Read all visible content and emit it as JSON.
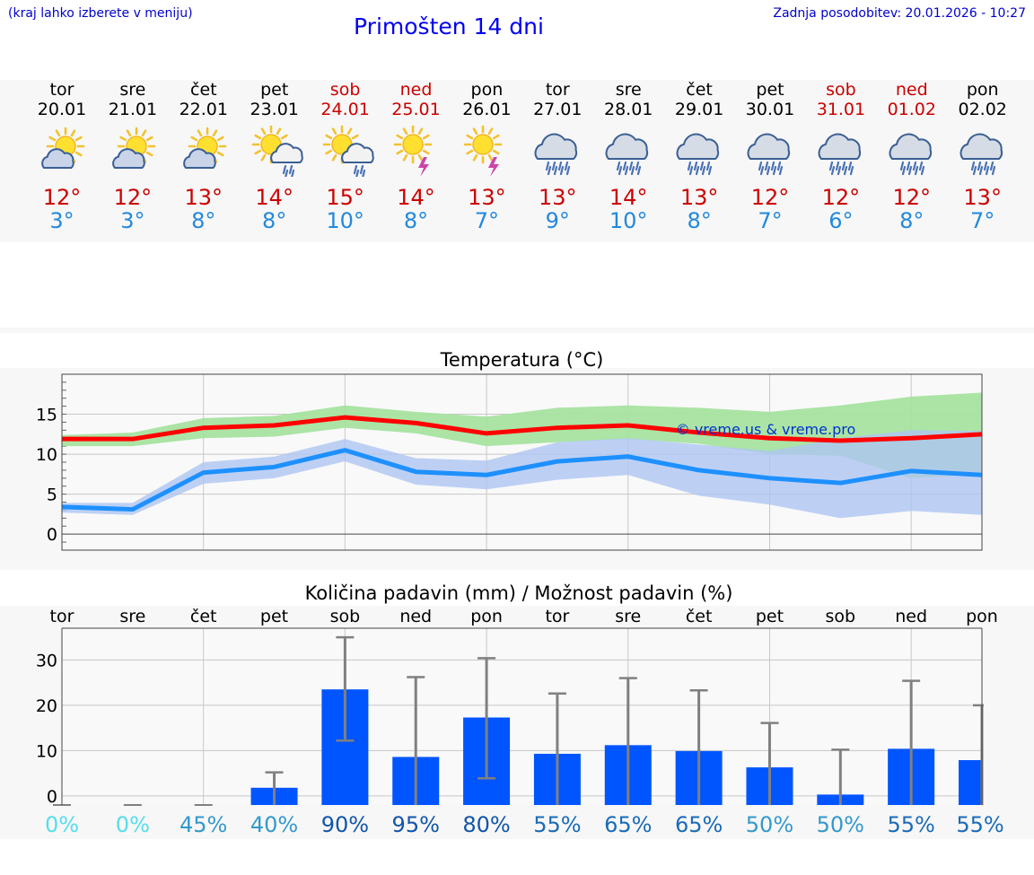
{
  "header": {
    "menu_hint": "(kraj lahko izberete v meniju)",
    "title": "Primošten 14 dni",
    "updated": "Zadnja posodobitev: 20.01.2026 - 10:27"
  },
  "days": [
    {
      "name": "tor",
      "date": "20.01",
      "weekend": false,
      "icon": "sun-cloud-icon",
      "max": "12°",
      "min": "3°"
    },
    {
      "name": "sre",
      "date": "21.01",
      "weekend": false,
      "icon": "sun-cloud-icon",
      "max": "12°",
      "min": "3°"
    },
    {
      "name": "čet",
      "date": "22.01",
      "weekend": false,
      "icon": "sun-cloud-icon",
      "max": "13°",
      "min": "8°"
    },
    {
      "name": "pet",
      "date": "23.01",
      "weekend": false,
      "icon": "sun-cloud-rain-icon",
      "max": "14°",
      "min": "8°"
    },
    {
      "name": "sob",
      "date": "24.01",
      "weekend": true,
      "icon": "sun-cloud-rain-icon",
      "max": "15°",
      "min": "10°"
    },
    {
      "name": "ned",
      "date": "25.01",
      "weekend": true,
      "icon": "sun-thunder-icon",
      "max": "14°",
      "min": "8°"
    },
    {
      "name": "pon",
      "date": "26.01",
      "weekend": false,
      "icon": "sun-thunder-icon",
      "max": "13°",
      "min": "7°"
    },
    {
      "name": "tor",
      "date": "27.01",
      "weekend": false,
      "icon": "cloud-rain-icon",
      "max": "13°",
      "min": "9°"
    },
    {
      "name": "sre",
      "date": "28.01",
      "weekend": false,
      "icon": "cloud-rain-icon",
      "max": "14°",
      "min": "10°"
    },
    {
      "name": "čet",
      "date": "29.01",
      "weekend": false,
      "icon": "cloud-rain-icon",
      "max": "13°",
      "min": "8°"
    },
    {
      "name": "pet",
      "date": "30.01",
      "weekend": false,
      "icon": "cloud-rain-icon",
      "max": "12°",
      "min": "7°"
    },
    {
      "name": "sob",
      "date": "31.01",
      "weekend": true,
      "icon": "cloud-rain-icon",
      "max": "12°",
      "min": "6°"
    },
    {
      "name": "ned",
      "date": "01.02",
      "weekend": true,
      "icon": "cloud-rain-icon",
      "max": "12°",
      "min": "8°"
    },
    {
      "name": "pon",
      "date": "02.02",
      "weekend": false,
      "icon": "cloud-rain-icon",
      "max": "13°",
      "min": "7°"
    }
  ],
  "colors": {
    "max": "#ff0000",
    "min": "#1e90ff",
    "max_band": "#a6e3a0",
    "min_band": "#aec6f2",
    "bar": "#0055ff",
    "err": "#808080"
  },
  "chart_data": [
    {
      "type": "line",
      "title": "Temperatura (°C)",
      "watermark": "© vreme.us & vreme.pro",
      "x": [
        0,
        1,
        2,
        3,
        4,
        5,
        6,
        7,
        8,
        9,
        10,
        11,
        12,
        13
      ],
      "ylim": [
        -2,
        20
      ],
      "yticks": [
        0,
        5,
        10,
        15
      ],
      "series": [
        {
          "name": "max",
          "values": [
            11.9,
            11.9,
            13.3,
            13.6,
            14.6,
            13.9,
            12.6,
            13.3,
            13.6,
            12.7,
            12.0,
            11.7,
            12.0,
            12.5
          ],
          "band_low": [
            11.0,
            11.0,
            12.0,
            12.2,
            13.3,
            12.6,
            11.0,
            11.5,
            11.9,
            11.3,
            10.0,
            9.8,
            7.0,
            7.5
          ],
          "band_high": [
            12.4,
            12.7,
            14.5,
            14.8,
            16.1,
            15.3,
            14.7,
            15.8,
            16.1,
            15.8,
            15.3,
            16.1,
            17.2,
            17.7
          ]
        },
        {
          "name": "min",
          "values": [
            3.4,
            3.1,
            7.7,
            8.4,
            10.5,
            7.8,
            7.4,
            9.1,
            9.7,
            8.0,
            7.0,
            6.4,
            7.9,
            7.4
          ],
          "band_low": [
            2.7,
            2.4,
            6.3,
            7.0,
            9.1,
            6.2,
            5.6,
            6.8,
            7.4,
            4.8,
            3.7,
            2.0,
            2.9,
            2.4
          ],
          "band_high": [
            3.9,
            3.9,
            9.0,
            9.7,
            11.9,
            9.5,
            9.2,
            11.5,
            12.0,
            11.2,
            10.4,
            12.0,
            13.0,
            12.9
          ]
        }
      ]
    },
    {
      "type": "bar",
      "title": "Količina padavin (mm) / Možnost padavin (%)",
      "categories": [
        "tor",
        "sre",
        "čet",
        "pet",
        "sob",
        "ned",
        "pon",
        "tor",
        "sre",
        "čet",
        "pet",
        "sob",
        "ned",
        "pon"
      ],
      "values": [
        0,
        0,
        0,
        1.8,
        23.5,
        8.6,
        17.3,
        9.3,
        11.2,
        9.9,
        6.3,
        0.3,
        10.4,
        7.9
      ],
      "err_low": [
        0,
        0,
        0,
        0,
        12.2,
        0,
        3.9,
        0,
        0,
        0,
        0,
        0,
        0,
        0
      ],
      "err_high": [
        0,
        0,
        0,
        5.2,
        35.0,
        26.2,
        30.4,
        22.6,
        26.0,
        23.3,
        16.1,
        10.2,
        25.4,
        20.0
      ],
      "probabilities": [
        "0%",
        "0%",
        "45%",
        "40%",
        "90%",
        "95%",
        "80%",
        "55%",
        "65%",
        "65%",
        "50%",
        "50%",
        "55%",
        "55%"
      ],
      "prob_colors": [
        "#55ddee",
        "#55ddee",
        "#3399cc",
        "#3399cc",
        "#1155aa",
        "#1155aa",
        "#1155aa",
        "#1a6bb8",
        "#1a6bb8",
        "#1a6bb8",
        "#3399cc",
        "#3399cc",
        "#1a6bb8",
        "#1a6bb8"
      ],
      "ylim": [
        -2,
        37
      ],
      "yticks": [
        0,
        10,
        20,
        30
      ]
    }
  ]
}
